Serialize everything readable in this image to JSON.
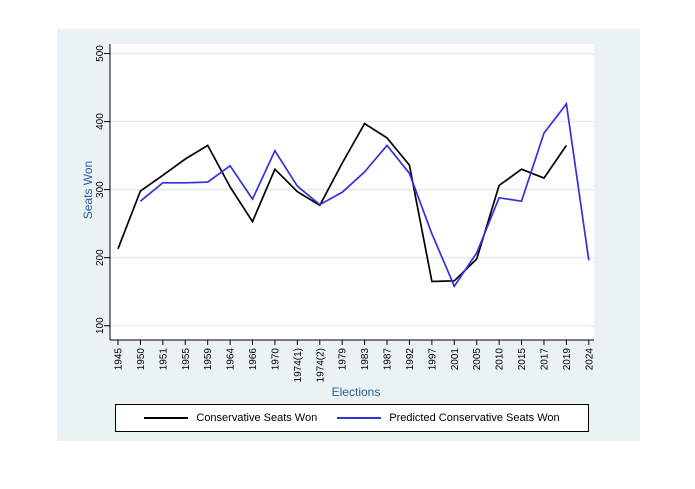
{
  "figure": {
    "background": "#ffffff"
  },
  "colors": {
    "panel_background": "#eaf2f3",
    "plot_background": "#ffffff",
    "gridline": "#e2eced",
    "axis_line": "#000000",
    "tick": "#000000",
    "tick_label": "#000000",
    "axis_title": "#2a5ca8",
    "legend_background": "#ffffff",
    "legend_border": "#000000",
    "legend_text": "#000000"
  },
  "chart_data": {
    "type": "line",
    "title": "",
    "xlabel": "Elections",
    "ylabel": "Seats Won",
    "ylim": [
      79,
      514
    ],
    "yticks": [
      100,
      200,
      300,
      400,
      500
    ],
    "grid": true,
    "legend_position": "bottom",
    "categories": [
      "1945",
      "1950",
      "1951",
      "1955",
      "1959",
      "1964",
      "1966",
      "1970",
      "1974(1)",
      "1974(2)",
      "1979",
      "1983",
      "1987",
      "1992",
      "1997",
      "2001",
      "2005",
      "2010",
      "2015",
      "2017",
      "2019",
      "2024"
    ],
    "series": [
      {
        "name": "Conservative Seats Won",
        "color": "#000000",
        "values": [
          213,
          298,
          321,
          345,
          365,
          304,
          253,
          330,
          297,
          277,
          339,
          397,
          376,
          336,
          165,
          166,
          198,
          306,
          330,
          317,
          365,
          null
        ]
      },
      {
        "name": "Predicted Conservative Seats Won",
        "color": "#3232dc",
        "values": [
          null,
          283,
          310,
          310,
          311,
          335,
          286,
          357,
          305,
          278,
          296,
          326,
          365,
          324,
          235,
          158,
          207,
          288,
          283,
          383,
          426,
          196
        ]
      }
    ]
  }
}
